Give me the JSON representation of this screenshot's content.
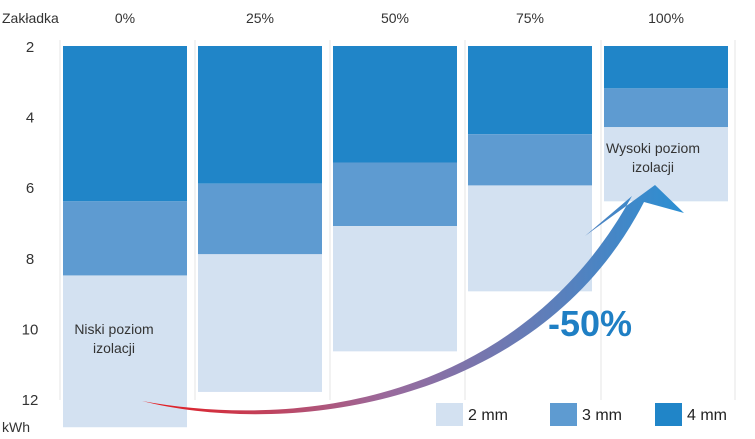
{
  "chart_data": {
    "type": "bar",
    "stacked": true,
    "corner_label": "Zakładka",
    "categories": [
      "0%",
      "25%",
      "50%",
      "75%",
      "100%"
    ],
    "series": [
      {
        "name": "4 mm",
        "color": "#2085C8",
        "segments": [
          [
            2,
            6.4
          ],
          [
            2,
            5.9
          ],
          [
            2,
            5.3
          ],
          [
            2,
            4.5
          ],
          [
            2,
            3.2
          ]
        ]
      },
      {
        "name": "3 mm",
        "color": "#5E9BD1",
        "segments": [
          [
            6.4,
            8.5
          ],
          [
            5.9,
            7.9
          ],
          [
            5.3,
            7.1
          ],
          [
            4.5,
            5.95
          ],
          [
            3.2,
            4.3
          ]
        ]
      },
      {
        "name": "2 mm",
        "color": "#D3E1F1",
        "segments": [
          [
            8.5,
            12.8
          ],
          [
            7.9,
            11.8
          ],
          [
            7.1,
            10.65
          ],
          [
            5.95,
            8.95
          ],
          [
            4.3,
            6.4
          ]
        ]
      }
    ],
    "yaxis": {
      "unit_label": "kWh",
      "ticks": [
        2,
        4,
        6,
        8,
        10,
        12
      ],
      "range": [
        2,
        12.8
      ],
      "inverted": true
    },
    "annotations": {
      "low": [
        "Niski poziom",
        "izolacji"
      ],
      "high": [
        "Wysoki poziom",
        "izolacji"
      ],
      "reduction": "-50%"
    },
    "legend": {
      "position": "bottom-right",
      "items": [
        "2 mm",
        "3 mm",
        "4 mm"
      ]
    },
    "grid": true
  }
}
